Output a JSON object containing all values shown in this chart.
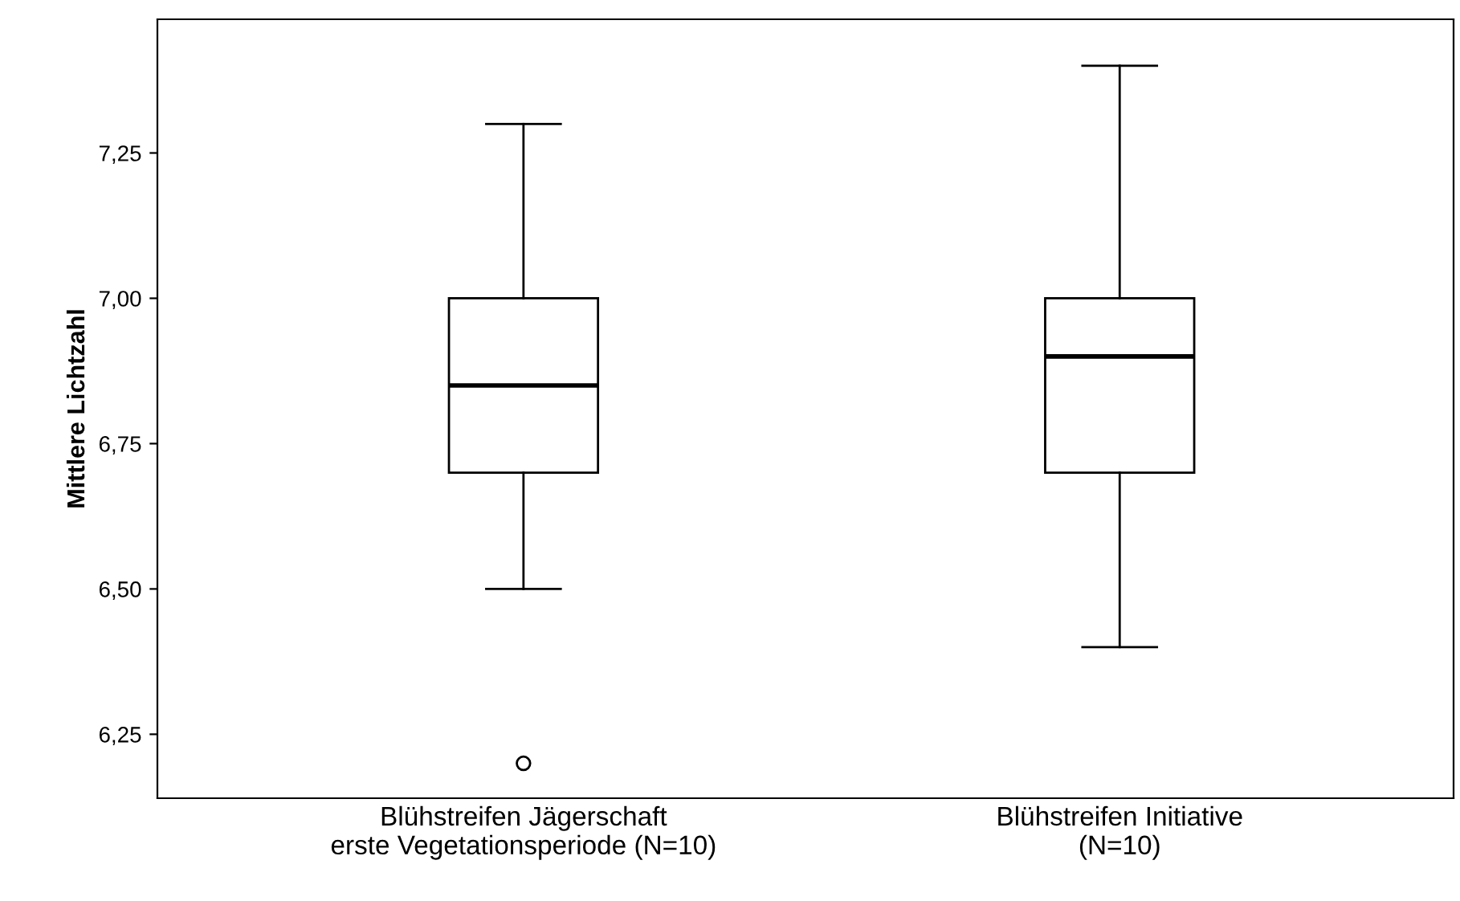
{
  "chart_data": {
    "type": "box",
    "ylabel": "Mittlere Lichtzahl",
    "categories": [
      "Blühstreifen Jägerschaft\nerste Vegetationsperiode (N=10)",
      "Blühstreifen Initiative\n(N=10)"
    ],
    "boxes": [
      {
        "low": 6.5,
        "q1": 6.7,
        "median": 6.85,
        "q3": 7.0,
        "high": 7.3,
        "outliers": [
          6.2
        ]
      },
      {
        "low": 6.4,
        "q1": 6.7,
        "median": 6.9,
        "q3": 7.0,
        "high": 7.4
      }
    ],
    "ylim": [
      6.14,
      7.48
    ],
    "yticks": [
      {
        "value": 6.25,
        "label": "6,25"
      },
      {
        "value": 6.5,
        "label": "6,50"
      },
      {
        "value": 6.75,
        "label": "6,75"
      },
      {
        "value": 7.0,
        "label": "7,00"
      },
      {
        "value": 7.25,
        "label": "7,25"
      }
    ],
    "grid": false
  }
}
